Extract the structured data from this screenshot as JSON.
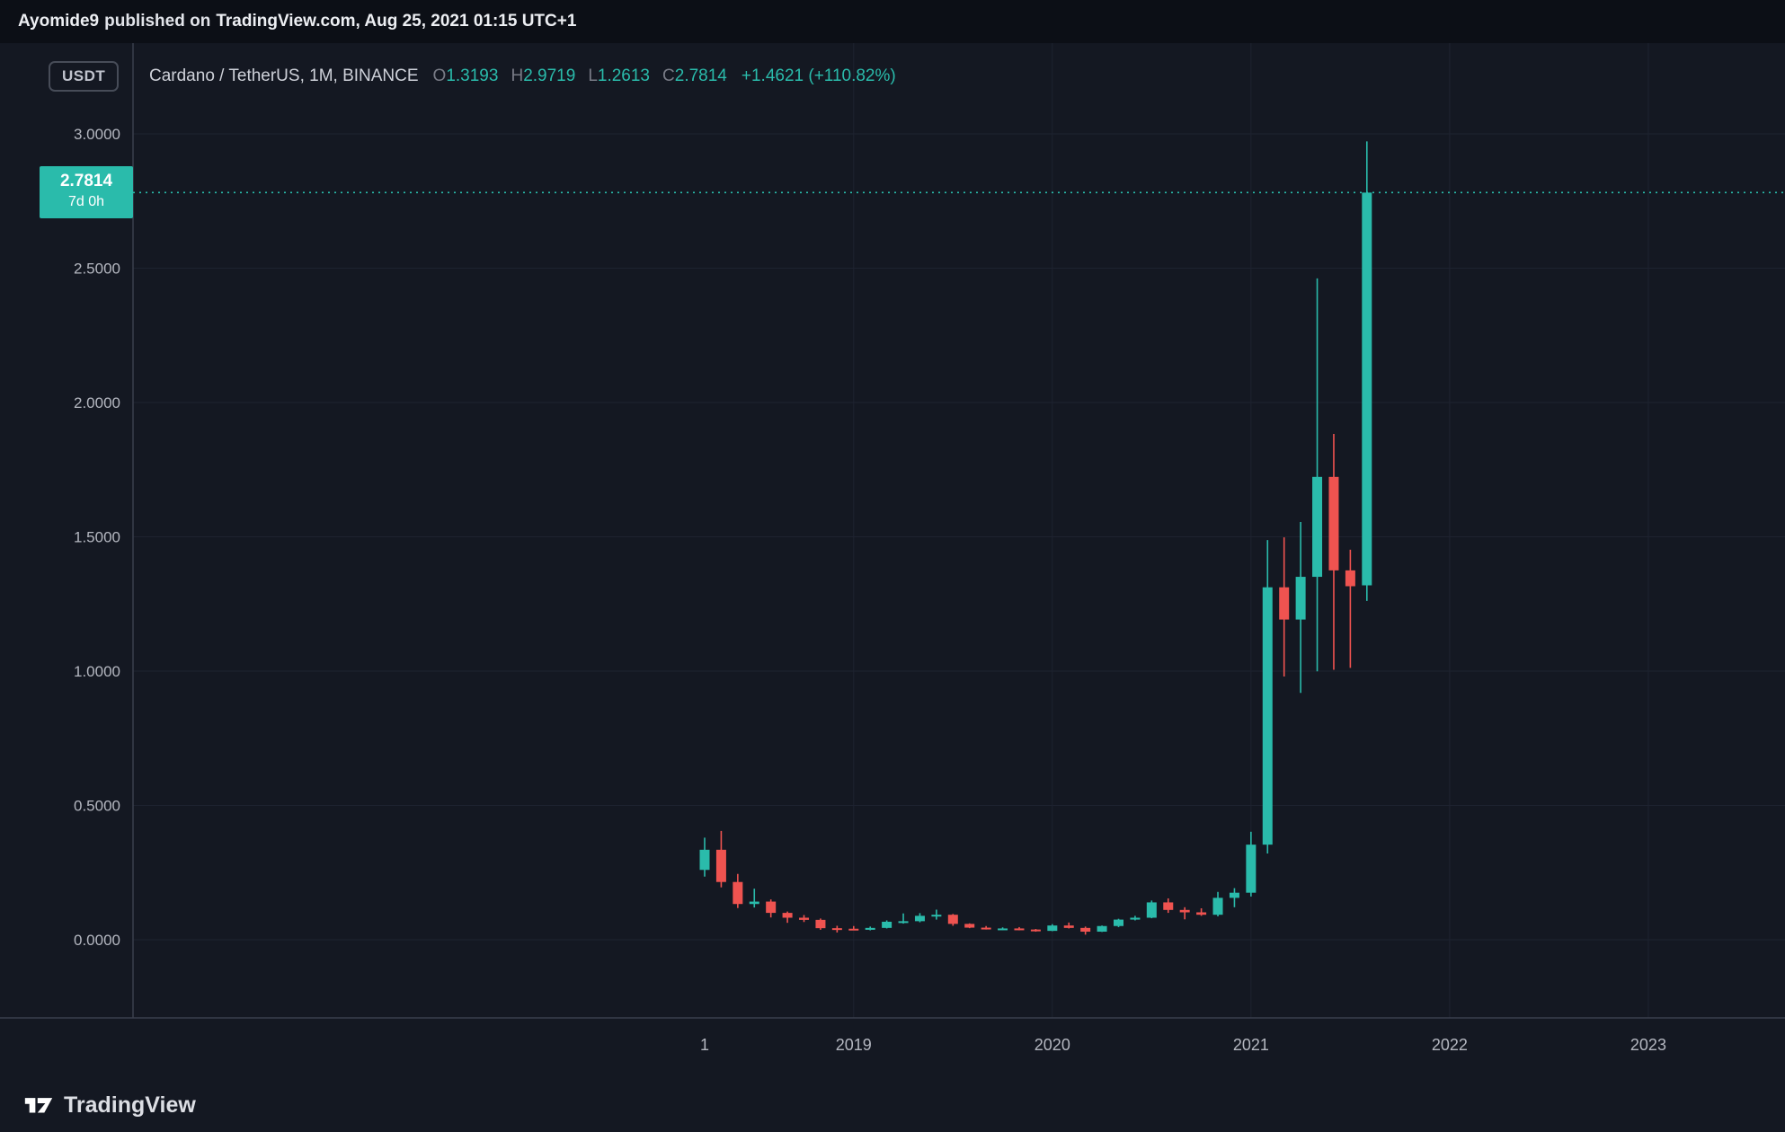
{
  "header": {
    "author": "Ayomide9",
    "published_on": "published on",
    "site_and_date": "TradingView.com, Aug 25, 2021 01:15 UTC+1"
  },
  "chart": {
    "currency_label": "USDT"
  },
  "legend": {
    "title": "Cardano / TetherUS, 1M, BINANCE",
    "ohlc": [
      {
        "label": "O",
        "value": "1.3193"
      },
      {
        "label": "H",
        "value": "2.9719"
      },
      {
        "label": "L",
        "value": "1.2613"
      },
      {
        "label": "C",
        "value": "2.7814"
      }
    ],
    "change": "+1.4621 (+110.82%)"
  },
  "price_badge": {
    "price": "2.7814",
    "countdown": "7d 0h"
  },
  "footer": {
    "brand": "TradingView"
  },
  "colors": {
    "up": "#2abbab",
    "down": "#ef5350",
    "grid": "#1e2330",
    "axis": "#3a3f4c",
    "label": "#b4b7c0"
  },
  "chart_data": {
    "type": "candlestick",
    "title": "Cardano / TetherUS",
    "timeframe": "1M",
    "exchange": "BINANCE",
    "last_price_line": 2.7814,
    "y_axis": {
      "ticks": [
        "3.0000",
        "2.5000",
        "2.0000",
        "1.5000",
        "1.0000",
        "0.5000",
        "0.0000"
      ],
      "ylim": [
        -0.29,
        3.34
      ]
    },
    "x_ticks": [
      {
        "label": "1",
        "month_index": 0
      },
      {
        "label": "2019",
        "month_index": 9
      },
      {
        "label": "2020",
        "month_index": 21
      },
      {
        "label": "2021",
        "month_index": 33
      },
      {
        "label": "2022",
        "month_index": 45
      },
      {
        "label": "2023",
        "month_index": 57
      }
    ],
    "candles": [
      {
        "t": "2018-04",
        "o": 0.26,
        "h": 0.38,
        "l": 0.235,
        "c": 0.335
      },
      {
        "t": "2018-05",
        "o": 0.335,
        "h": 0.405,
        "l": 0.195,
        "c": 0.215
      },
      {
        "t": "2018-06",
        "o": 0.215,
        "h": 0.245,
        "l": 0.118,
        "c": 0.133
      },
      {
        "t": "2018-07",
        "o": 0.133,
        "h": 0.19,
        "l": 0.12,
        "c": 0.142
      },
      {
        "t": "2018-08",
        "o": 0.142,
        "h": 0.15,
        "l": 0.083,
        "c": 0.1
      },
      {
        "t": "2018-09",
        "o": 0.1,
        "h": 0.105,
        "l": 0.063,
        "c": 0.082
      },
      {
        "t": "2018-10",
        "o": 0.082,
        "h": 0.092,
        "l": 0.066,
        "c": 0.074
      },
      {
        "t": "2018-11",
        "o": 0.074,
        "h": 0.079,
        "l": 0.037,
        "c": 0.043
      },
      {
        "t": "2018-12",
        "o": 0.043,
        "h": 0.052,
        "l": 0.027,
        "c": 0.041
      },
      {
        "t": "2019-01",
        "o": 0.041,
        "h": 0.051,
        "l": 0.036,
        "c": 0.037
      },
      {
        "t": "2019-02",
        "o": 0.037,
        "h": 0.049,
        "l": 0.035,
        "c": 0.044
      },
      {
        "t": "2019-03",
        "o": 0.044,
        "h": 0.072,
        "l": 0.042,
        "c": 0.067
      },
      {
        "t": "2019-04",
        "o": 0.067,
        "h": 0.098,
        "l": 0.06,
        "c": 0.069
      },
      {
        "t": "2019-05",
        "o": 0.069,
        "h": 0.099,
        "l": 0.065,
        "c": 0.089
      },
      {
        "t": "2019-06",
        "o": 0.089,
        "h": 0.112,
        "l": 0.075,
        "c": 0.093
      },
      {
        "t": "2019-07",
        "o": 0.093,
        "h": 0.096,
        "l": 0.052,
        "c": 0.059
      },
      {
        "t": "2019-08",
        "o": 0.059,
        "h": 0.061,
        "l": 0.043,
        "c": 0.045
      },
      {
        "t": "2019-09",
        "o": 0.045,
        "h": 0.051,
        "l": 0.038,
        "c": 0.04
      },
      {
        "t": "2019-10",
        "o": 0.04,
        "h": 0.046,
        "l": 0.036,
        "c": 0.042
      },
      {
        "t": "2019-11",
        "o": 0.042,
        "h": 0.047,
        "l": 0.035,
        "c": 0.038
      },
      {
        "t": "2019-12",
        "o": 0.038,
        "h": 0.04,
        "l": 0.03,
        "c": 0.033
      },
      {
        "t": "2020-01",
        "o": 0.033,
        "h": 0.058,
        "l": 0.032,
        "c": 0.053
      },
      {
        "t": "2020-02",
        "o": 0.053,
        "h": 0.064,
        "l": 0.042,
        "c": 0.044
      },
      {
        "t": "2020-03",
        "o": 0.044,
        "h": 0.049,
        "l": 0.019,
        "c": 0.03
      },
      {
        "t": "2020-04",
        "o": 0.03,
        "h": 0.053,
        "l": 0.029,
        "c": 0.051
      },
      {
        "t": "2020-05",
        "o": 0.051,
        "h": 0.078,
        "l": 0.047,
        "c": 0.075
      },
      {
        "t": "2020-06",
        "o": 0.075,
        "h": 0.089,
        "l": 0.072,
        "c": 0.082
      },
      {
        "t": "2020-07",
        "o": 0.082,
        "h": 0.146,
        "l": 0.08,
        "c": 0.139
      },
      {
        "t": "2020-08",
        "o": 0.139,
        "h": 0.154,
        "l": 0.1,
        "c": 0.111
      },
      {
        "t": "2020-09",
        "o": 0.111,
        "h": 0.121,
        "l": 0.076,
        "c": 0.102
      },
      {
        "t": "2020-10",
        "o": 0.102,
        "h": 0.117,
        "l": 0.089,
        "c": 0.093
      },
      {
        "t": "2020-11",
        "o": 0.093,
        "h": 0.178,
        "l": 0.087,
        "c": 0.156
      },
      {
        "t": "2020-12",
        "o": 0.156,
        "h": 0.192,
        "l": 0.121,
        "c": 0.175
      },
      {
        "t": "2021-01",
        "o": 0.175,
        "h": 0.402,
        "l": 0.161,
        "c": 0.354
      },
      {
        "t": "2021-02",
        "o": 0.354,
        "h": 1.488,
        "l": 0.321,
        "c": 1.312
      },
      {
        "t": "2021-03",
        "o": 1.312,
        "h": 1.498,
        "l": 0.98,
        "c": 1.192
      },
      {
        "t": "2021-04",
        "o": 1.192,
        "h": 1.555,
        "l": 0.919,
        "c": 1.351
      },
      {
        "t": "2021-05",
        "o": 1.351,
        "h": 2.462,
        "l": 0.999,
        "c": 1.723
      },
      {
        "t": "2021-06",
        "o": 1.723,
        "h": 1.883,
        "l": 1.005,
        "c": 1.375
      },
      {
        "t": "2021-07",
        "o": 1.375,
        "h": 1.452,
        "l": 1.012,
        "c": 1.316
      },
      {
        "t": "2021-08",
        "o": 1.3193,
        "h": 2.9719,
        "l": 1.2613,
        "c": 2.7814
      }
    ]
  }
}
